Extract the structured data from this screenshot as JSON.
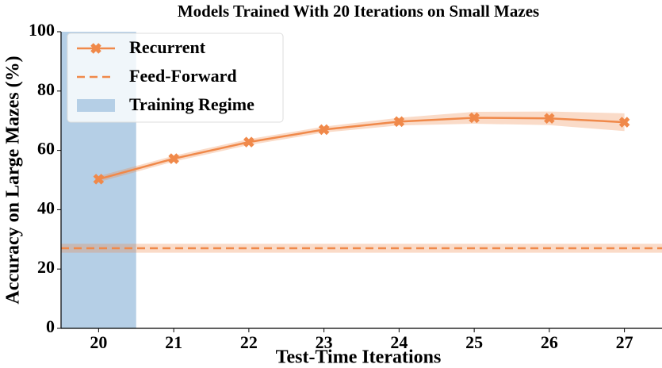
{
  "chart_data": {
    "type": "line",
    "title": "Models Trained With 20 Iterations on Small Mazes",
    "xlabel": "Test-Time Iterations",
    "ylabel": "Accuracy on Large Mazes (%)",
    "x": [
      20,
      21,
      22,
      23,
      24,
      25,
      26,
      27
    ],
    "series": [
      {
        "name": "Recurrent",
        "color": "#f0894a",
        "marker": "X",
        "values": [
          50.3,
          57.2,
          62.8,
          67.0,
          69.7,
          71.0,
          70.8,
          69.5
        ],
        "errors": [
          1.0,
          1.0,
          1.0,
          1.0,
          1.3,
          2.0,
          2.3,
          3.0
        ]
      },
      {
        "name": "Feed-Forward",
        "color": "#f0894a",
        "style": "dashed",
        "value": 27.0,
        "error": 1.5
      }
    ],
    "regions": [
      {
        "name": "Training Regime",
        "color": "#b5cfe6",
        "x": [
          19.5,
          20.5
        ]
      }
    ],
    "xlim": [
      19.5,
      27.5
    ],
    "xticks": [
      20,
      21,
      22,
      23,
      24,
      25,
      26,
      27
    ],
    "ylim": [
      0,
      100
    ],
    "yticks": [
      0,
      20,
      40,
      60,
      80,
      100
    ],
    "legend": "upper left"
  }
}
